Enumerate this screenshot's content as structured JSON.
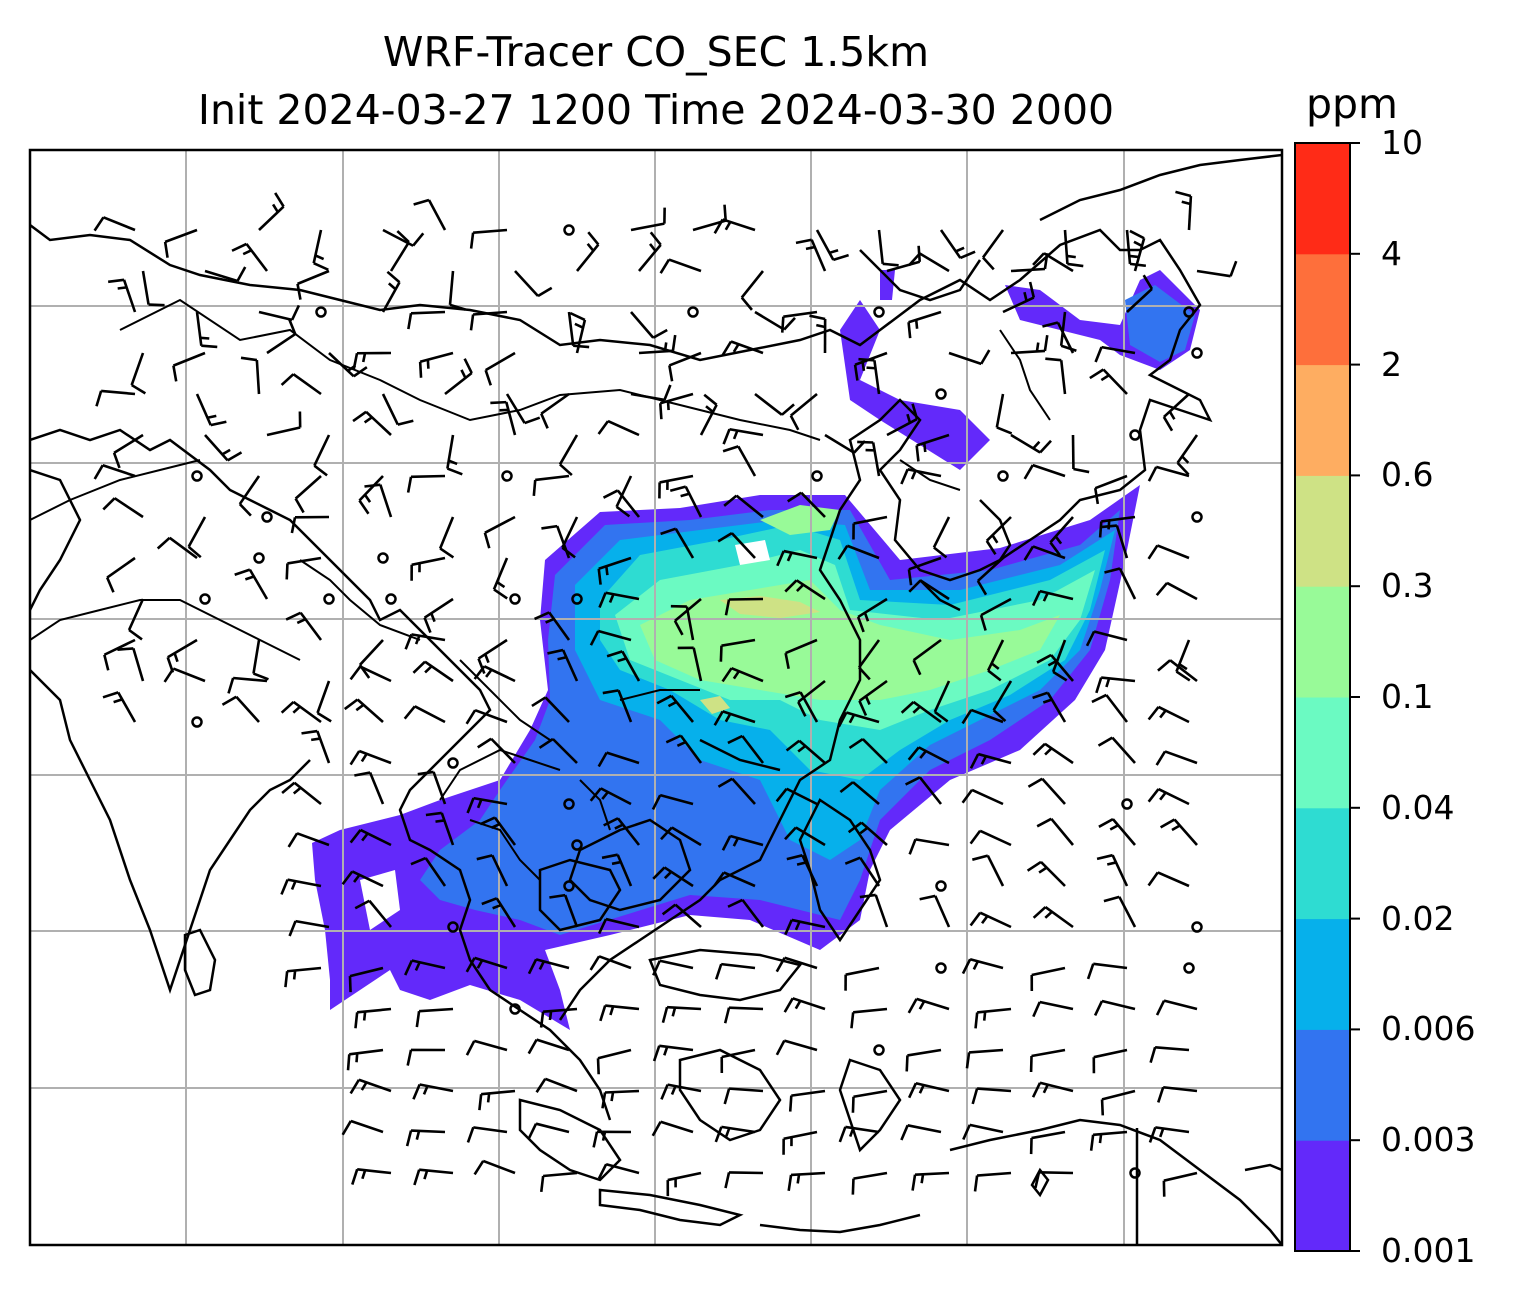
{
  "title": {
    "line1": "WRF-Tracer CO_SEC 1.5km",
    "line2": "Init 2024-03-27 1200 Time 2024-03-30 2000"
  },
  "colorbar": {
    "unit": "ppm",
    "levels": [
      "0.001",
      "0.003",
      "0.006",
      "0.02",
      "0.04",
      "0.1",
      "0.3",
      "0.6",
      "2",
      "4",
      "10"
    ],
    "colors": [
      "#6329fa",
      "#3274f0",
      "#06b0eb",
      "#2edcd2",
      "#6bfac2",
      "#98fa98",
      "#cee285",
      "#fead61",
      "#fe6f3b",
      "#ff2b17"
    ]
  },
  "map": {
    "features": [
      "coastlines",
      "country-borders",
      "lat-lon-gridlines",
      "wind-barbs",
      "calm-wind-circles"
    ],
    "background": "#ffffff",
    "grid_color": "#b0b0b0"
  }
}
